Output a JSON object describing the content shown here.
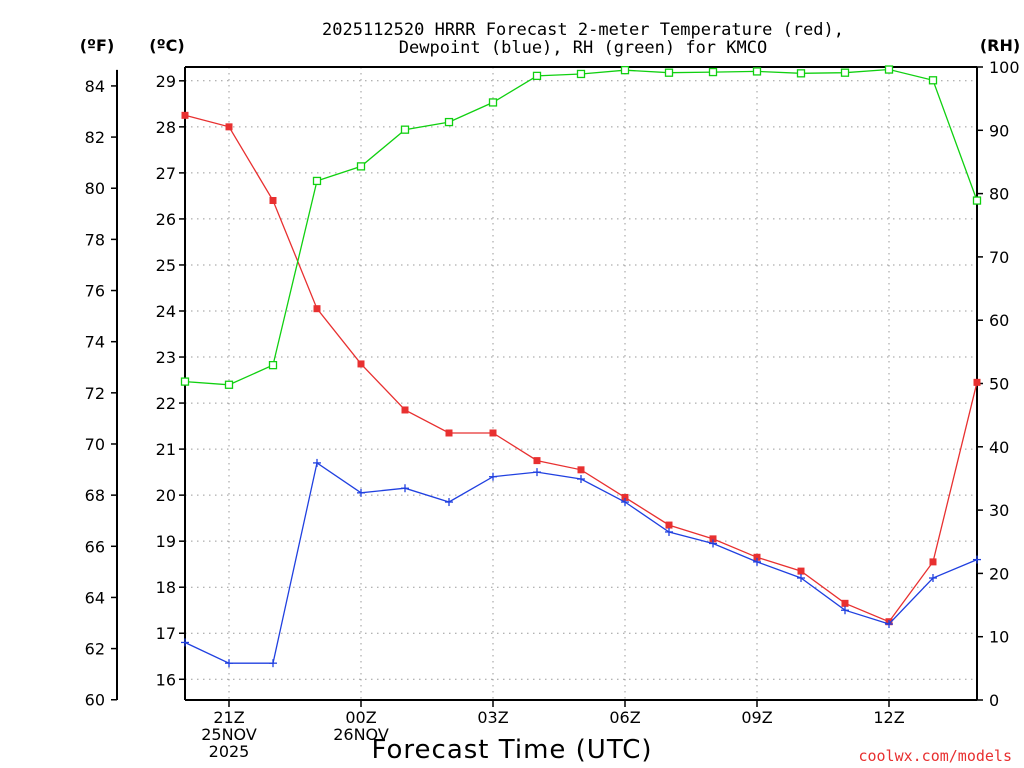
{
  "chart_data": {
    "type": "line",
    "title_line1": "2025112520 HRRR Forecast 2-meter Temperature (red),",
    "title_line2": "Dewpoint (blue), RH (green) for KMCO",
    "xlabel": "Forecast Time (UTC)",
    "credit": "coolwx.com/models",
    "units": {
      "f": "(ºF)",
      "c": "(ºC)",
      "rh": "(RH)"
    },
    "x": [
      "20Z",
      "21Z",
      "22Z",
      "23Z",
      "00Z",
      "01Z",
      "02Z",
      "03Z",
      "04Z",
      "05Z",
      "06Z",
      "07Z",
      "08Z",
      "09Z",
      "10Z",
      "11Z",
      "12Z",
      "13Z",
      "14Z"
    ],
    "x_ticks": [
      {
        "index": 1,
        "lines": [
          "21Z",
          "25NOV",
          "2025"
        ]
      },
      {
        "index": 4,
        "lines": [
          "00Z",
          "26NOV"
        ]
      },
      {
        "index": 7,
        "lines": [
          "03Z"
        ]
      },
      {
        "index": 10,
        "lines": [
          "06Z"
        ]
      },
      {
        "index": 13,
        "lines": [
          "09Z"
        ]
      },
      {
        "index": 16,
        "lines": [
          "12Z"
        ]
      }
    ],
    "y_left_c": {
      "min": 15.55,
      "max": 29.3,
      "ticks": [
        16,
        17,
        18,
        19,
        20,
        21,
        22,
        23,
        24,
        25,
        26,
        27,
        28,
        29
      ]
    },
    "y_left_f": {
      "ticks": [
        60,
        62,
        64,
        66,
        68,
        70,
        72,
        74,
        76,
        78,
        80,
        82,
        84
      ]
    },
    "y_right_rh": {
      "min": 0,
      "max": 100,
      "ticks": [
        0,
        10,
        20,
        30,
        40,
        50,
        60,
        70,
        80,
        90,
        100
      ]
    },
    "grid": true,
    "series": [
      {
        "name": "Temperature (red)",
        "axis": "c",
        "color": "#e83030",
        "marker": "filled-square",
        "values": [
          28.25,
          28.0,
          26.4,
          24.05,
          22.85,
          21.85,
          21.35,
          21.35,
          20.75,
          20.55,
          19.95,
          19.35,
          19.05,
          18.65,
          18.35,
          17.65,
          17.25,
          18.55,
          22.45
        ]
      },
      {
        "name": "Dewpoint (blue)",
        "axis": "c",
        "color": "#2040e0",
        "marker": "plus",
        "values": [
          16.8,
          16.35,
          16.35,
          20.7,
          20.05,
          20.15,
          19.85,
          20.4,
          20.5,
          20.35,
          19.85,
          19.2,
          18.95,
          18.55,
          18.2,
          17.5,
          17.2,
          18.2,
          18.6
        ]
      },
      {
        "name": "RH (green)",
        "axis": "rh",
        "color": "#10d010",
        "marker": "open-square",
        "values": [
          50.3,
          49.8,
          52.9,
          82.0,
          84.3,
          90.1,
          91.3,
          94.4,
          98.6,
          98.9,
          99.5,
          99.1,
          99.2,
          99.3,
          99.0,
          99.1,
          99.6,
          97.9,
          78.9
        ]
      }
    ]
  }
}
